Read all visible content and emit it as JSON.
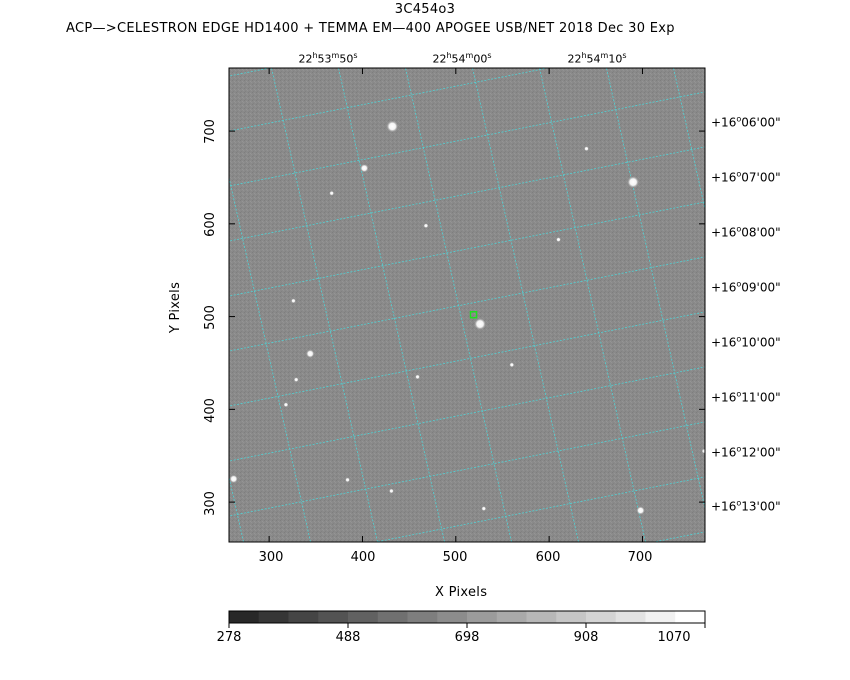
{
  "header": {
    "title": "3C454o3",
    "subtitle": "ACP—>CELESTRON EDGE HD1400 + TEMMA EM—400 APOGEE USB/NET   2018 Dec 30    Exp"
  },
  "ra_labels": [
    {
      "h": "22",
      "m": "53",
      "s": "50"
    },
    {
      "h": "22",
      "m": "54",
      "s": "00"
    },
    {
      "h": "22",
      "m": "54",
      "s": "10"
    }
  ],
  "dec_labels": [
    {
      "d": "+16",
      "m": "06",
      "s": "00"
    },
    {
      "d": "+16",
      "m": "07",
      "s": "00"
    },
    {
      "d": "+16",
      "m": "08",
      "s": "00"
    },
    {
      "d": "+16",
      "m": "09",
      "s": "00"
    },
    {
      "d": "+16",
      "m": "10",
      "s": "00"
    },
    {
      "d": "+16",
      "m": "11",
      "s": "00"
    },
    {
      "d": "+16",
      "m": "12",
      "s": "00"
    },
    {
      "d": "+16",
      "m": "13",
      "s": "00"
    }
  ],
  "x_axis": {
    "label": "X Pixels",
    "ticks": [
      "300",
      "400",
      "500",
      "600",
      "700"
    ],
    "range": [
      257,
      767
    ]
  },
  "y_axis": {
    "label": "Y Pixels",
    "ticks": [
      "300",
      "400",
      "500",
      "600",
      "700"
    ],
    "range": [
      257,
      768
    ]
  },
  "colorbar": {
    "ticks": [
      "278",
      "488",
      "698",
      "908",
      "1070"
    ]
  },
  "colors": {
    "background_sky": "#888888",
    "grid": "#4fd3d6",
    "target_marker": "#22dd22"
  },
  "stars": [
    {
      "x": 432,
      "y": 705,
      "mag": "bright"
    },
    {
      "x": 402,
      "y": 660,
      "mag": "medium"
    },
    {
      "x": 367,
      "y": 633,
      "mag": "faint"
    },
    {
      "x": 690,
      "y": 645,
      "mag": "bright"
    },
    {
      "x": 640,
      "y": 681,
      "mag": "faint"
    },
    {
      "x": 468,
      "y": 598,
      "mag": "faint"
    },
    {
      "x": 610,
      "y": 583,
      "mag": "faint"
    },
    {
      "x": 526,
      "y": 492,
      "mag": "bright"
    },
    {
      "x": 344,
      "y": 460,
      "mag": "medium"
    },
    {
      "x": 459,
      "y": 435,
      "mag": "faint"
    },
    {
      "x": 560,
      "y": 448,
      "mag": "faint"
    },
    {
      "x": 262,
      "y": 325,
      "mag": "medium"
    },
    {
      "x": 384,
      "y": 324,
      "mag": "faint"
    },
    {
      "x": 698,
      "y": 291,
      "mag": "medium"
    },
    {
      "x": 326,
      "y": 517,
      "mag": "faint"
    },
    {
      "x": 318,
      "y": 405,
      "mag": "faint"
    },
    {
      "x": 329,
      "y": 432,
      "mag": "faint"
    },
    {
      "x": 530,
      "y": 293,
      "mag": "faint"
    },
    {
      "x": 431,
      "y": 312,
      "mag": "faint"
    },
    {
      "x": 766,
      "y": 355,
      "mag": "faint"
    }
  ],
  "target": {
    "x": 519,
    "y": 502
  }
}
